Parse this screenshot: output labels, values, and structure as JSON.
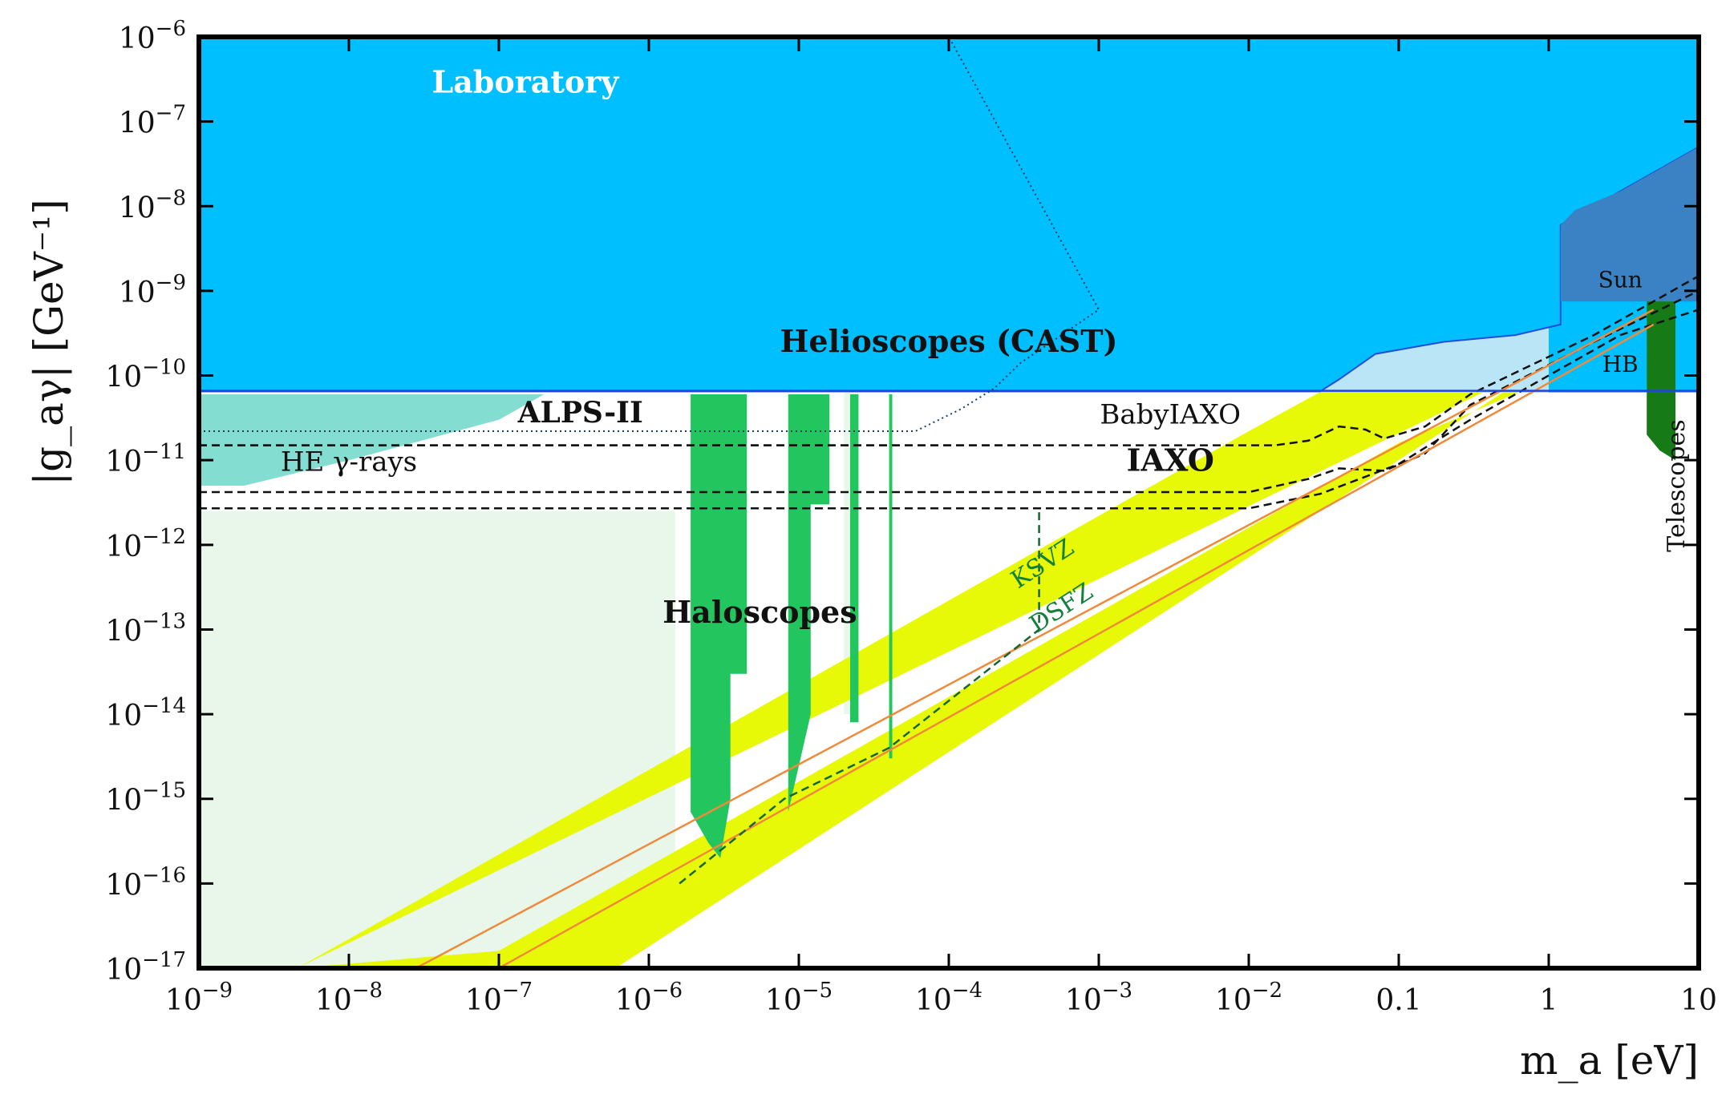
{
  "chart_data": {
    "type": "area",
    "title": "",
    "xlabel": "m_a [eV]",
    "ylabel": "|g_aγ| [GeV⁻¹]",
    "x_scale": "log",
    "y_scale": "log",
    "xlim": [
      1e-09,
      10
    ],
    "ylim": [
      1e-17,
      1e-06
    ],
    "grid": false,
    "x_ticks": [
      {
        "value": 1e-09,
        "base": "10",
        "exp": "−9"
      },
      {
        "value": 1e-08,
        "base": "10",
        "exp": "−8"
      },
      {
        "value": 1e-07,
        "base": "10",
        "exp": "−7"
      },
      {
        "value": 1e-06,
        "base": "10",
        "exp": "−6"
      },
      {
        "value": 1e-05,
        "base": "10",
        "exp": "−5"
      },
      {
        "value": 0.0001,
        "base": "10",
        "exp": "−4"
      },
      {
        "value": 0.001,
        "base": "10",
        "exp": "−3"
      },
      {
        "value": 0.01,
        "base": "10",
        "exp": "−2"
      },
      {
        "value": 0.1,
        "base": "0.1",
        "exp": ""
      },
      {
        "value": 1,
        "base": "1",
        "exp": ""
      },
      {
        "value": 10,
        "base": "10",
        "exp": ""
      }
    ],
    "y_ticks": [
      {
        "value": 1e-17,
        "base": "10",
        "exp": "−17"
      },
      {
        "value": 1e-16,
        "base": "10",
        "exp": "−16"
      },
      {
        "value": 1e-15,
        "base": "10",
        "exp": "−15"
      },
      {
        "value": 1e-14,
        "base": "10",
        "exp": "−14"
      },
      {
        "value": 1e-13,
        "base": "10",
        "exp": "−13"
      },
      {
        "value": 1e-12,
        "base": "10",
        "exp": "−12"
      },
      {
        "value": 1e-11,
        "base": "10",
        "exp": "−11"
      },
      {
        "value": 1e-10,
        "base": "10",
        "exp": "−10"
      },
      {
        "value": 1e-09,
        "base": "10",
        "exp": "−9"
      },
      {
        "value": 1e-08,
        "base": "10",
        "exp": "−8"
      },
      {
        "value": 1e-07,
        "base": "10",
        "exp": "−7"
      },
      {
        "value": 1e-06,
        "base": "10",
        "exp": "−6"
      }
    ],
    "regions": [
      {
        "name": "HE-gamma-band",
        "color": "#e8f7ea",
        "points": [
          [
            1e-09,
            2.5e-12
          ],
          [
            6e-07,
            2.5e-12
          ],
          [
            6e-07,
            1e-17
          ],
          [
            1e-09,
            1e-17
          ]
        ]
      },
      {
        "name": "pale-column-1",
        "color": "#e8f7ea",
        "points": [
          [
            6e-07,
            2.5e-12
          ],
          [
            1.5e-06,
            2.5e-12
          ],
          [
            1.5e-06,
            6e-17
          ],
          [
            6e-07,
            6e-17
          ]
        ]
      },
      {
        "name": "pale-column-2",
        "color": "#e8f7ea",
        "points": [
          [
            2e-05,
            6.5e-11
          ],
          [
            2.5e-05,
            6.5e-11
          ],
          [
            2.5e-05,
            1e-14
          ],
          [
            2e-05,
            1e-14
          ]
        ]
      },
      {
        "name": "QCD-band",
        "color": "#e8f908",
        "points": [
          [
            4.5e-09,
            1e-17
          ],
          [
            6e-07,
            1e-17
          ],
          [
            5,
            9e-10
          ],
          [
            7,
            9e-10
          ],
          [
            7,
            3.8e-10
          ],
          [
            0.1,
            1.6e-11
          ],
          [
            0.001,
            1.6e-13
          ],
          [
            1e-05,
            1.6e-15
          ],
          [
            1e-07,
            1.6e-17
          ],
          [
            4.5e-09,
            1e-17
          ]
        ]
      },
      {
        "name": "QCD-band-upper",
        "color": "#e8f908",
        "points": [
          [
            4.5e-09,
            1e-17
          ],
          [
            1e-08,
            2.2e-17
          ],
          [
            1e-06,
            2.2e-15
          ],
          [
            0.0001,
            2.2e-13
          ],
          [
            0.01,
            2.2e-11
          ],
          [
            0.4,
            8e-10
          ],
          [
            7,
            8e-10
          ]
        ]
      },
      {
        "name": "Haloscopes",
        "color": "#22c55e",
        "points": [
          [
            1.9e-06,
            6e-11
          ],
          [
            4.5e-06,
            6e-11
          ],
          [
            4.5e-06,
            3e-14
          ],
          [
            3.5e-06,
            3e-14
          ],
          [
            3.5e-06,
            1e-15
          ],
          [
            3e-06,
            2e-16
          ],
          [
            2.5e-06,
            3e-16
          ],
          [
            1.9e-06,
            7e-16
          ]
        ]
      },
      {
        "name": "Haloscopes-2",
        "color": "#22c55e",
        "points": [
          [
            8.5e-06,
            6e-11
          ],
          [
            1.6e-05,
            6e-11
          ],
          [
            1.6e-05,
            3e-12
          ],
          [
            1.2e-05,
            3e-12
          ],
          [
            1.2e-05,
            1e-14
          ],
          [
            8.5e-06,
            7e-16
          ]
        ]
      },
      {
        "name": "Haloscopes-3",
        "color": "#22c55e",
        "points": [
          [
            2.2e-05,
            6e-11
          ],
          [
            2.5e-05,
            6e-11
          ],
          [
            2.5e-05,
            8e-15
          ],
          [
            2.2e-05,
            8e-15
          ]
        ]
      },
      {
        "name": "Haloscopes-4",
        "color": "#22c55e",
        "points": [
          [
            4e-05,
            6e-11
          ],
          [
            4.2e-05,
            6e-11
          ],
          [
            4.2e-05,
            3e-15
          ],
          [
            4e-05,
            3e-15
          ]
        ]
      },
      {
        "name": "Laboratory",
        "color": "#00bfff",
        "points": [
          [
            1e-09,
            1e-06
          ],
          [
            10,
            1e-06
          ],
          [
            10,
            6.3e-11
          ],
          [
            1e-09,
            6.3e-11
          ]
        ]
      },
      {
        "name": "Helioscopes",
        "color": "#b9e5f7",
        "points": [
          [
            1e-09,
            6.3e-11
          ],
          [
            1,
            6.3e-11
          ],
          [
            1,
            7e-10
          ],
          [
            1e-09,
            7e-10
          ]
        ]
      },
      {
        "name": "CAST",
        "color": "#00bfff",
        "points": [
          [
            1e-09,
            6.5e-11
          ],
          [
            0.03,
            6.5e-11
          ],
          [
            0.04,
            9e-11
          ],
          [
            0.07,
            1.8e-10
          ],
          [
            0.2,
            2.5e-10
          ],
          [
            0.6,
            3e-10
          ],
          [
            1.2,
            4e-10
          ],
          [
            1.2,
            6e-09
          ],
          [
            10,
            5e-08
          ],
          [
            10,
            1e-06
          ],
          [
            1e-09,
            1e-06
          ]
        ]
      },
      {
        "name": "Sun",
        "color": "#3b82c4",
        "points": [
          [
            1.2,
            6e-09
          ],
          [
            1.5,
            9e-09
          ],
          [
            3,
            1.5e-08
          ],
          [
            10,
            5e-08
          ],
          [
            10,
            7.5e-10
          ],
          [
            1.2,
            7.5e-10
          ]
        ]
      },
      {
        "name": "Telescopes",
        "color": "#167a16",
        "points": [
          [
            4.5,
            7.5e-10
          ],
          [
            7,
            7.5e-10
          ],
          [
            7,
            1e-11
          ],
          [
            5.5,
            1.3e-11
          ],
          [
            4.5,
            2e-11
          ]
        ]
      },
      {
        "name": "HE-gamma-blobs",
        "color": "#5ad1c0",
        "points": [
          [
            1e-09,
            6e-11
          ],
          [
            2e-07,
            6e-11
          ],
          [
            1e-07,
            3e-11
          ],
          [
            1e-08,
            1e-11
          ],
          [
            2e-09,
            5e-12
          ],
          [
            1e-09,
            5e-12
          ]
        ]
      }
    ],
    "lines": [
      {
        "name": "ALPS-II",
        "color": "#111111",
        "style": "dashed",
        "points": [
          [
            1e-09,
            1.5e-11
          ],
          [
            0.0003,
            1.5e-11
          ]
        ]
      },
      {
        "name": "BabyIAXO",
        "color": "#111111",
        "style": "dashed",
        "points": [
          [
            1e-09,
            1.5e-11
          ],
          [
            0.015,
            1.5e-11
          ],
          [
            0.025,
            1.7e-11
          ],
          [
            0.04,
            2.5e-11
          ],
          [
            0.06,
            2.3e-11
          ],
          [
            0.08,
            1.8e-11
          ],
          [
            0.15,
            2.5e-11
          ],
          [
            0.3,
            6e-11
          ],
          [
            2,
            3e-10
          ],
          [
            10,
            1.5e-09
          ]
        ]
      },
      {
        "name": "IAXO",
        "color": "#111111",
        "style": "dashed",
        "points": [
          [
            1e-09,
            4.2e-12
          ],
          [
            0.01,
            4.2e-12
          ],
          [
            0.025,
            6e-12
          ],
          [
            0.04,
            8e-12
          ],
          [
            0.08,
            7.5e-12
          ],
          [
            0.15,
            1.2e-11
          ],
          [
            0.3,
            4.5e-11
          ],
          [
            2,
            2.5e-10
          ],
          [
            10,
            1e-09
          ]
        ]
      },
      {
        "name": "IAXO-low",
        "color": "#111111",
        "style": "dashed",
        "points": [
          [
            1e-09,
            2.7e-12
          ],
          [
            0.01,
            2.7e-12
          ],
          [
            0.03,
            4e-12
          ],
          [
            0.1,
            9e-12
          ],
          [
            0.3,
            3e-11
          ],
          [
            3,
            3e-10
          ],
          [
            10,
            6e-10
          ]
        ]
      },
      {
        "name": "KSVZ",
        "color": "#f08a3a",
        "style": "solid",
        "points": [
          [
            2.8e-08,
            1e-17
          ],
          [
            5,
            6e-10
          ]
        ]
      },
      {
        "name": "DSFZ",
        "color": "#f08a3a",
        "style": "solid",
        "points": [
          [
            1e-07,
            1e-17
          ],
          [
            5,
            4e-10
          ]
        ]
      },
      {
        "name": "HB",
        "color": "#2244dd",
        "style": "solid",
        "points": [
          [
            1e-09,
            6.6e-11
          ],
          [
            10,
            6.6e-11
          ]
        ]
      },
      {
        "name": "projection-dotted",
        "color": "#1e3a5f",
        "style": "dotted",
        "points": [
          [
            1e-09,
            2.2e-11
          ],
          [
            6e-05,
            2.2e-11
          ],
          [
            0.00012,
            4e-11
          ],
          [
            0.0002,
            7e-11
          ],
          [
            0.0003,
            1.4e-10
          ],
          [
            0.001,
            6e-10
          ],
          [
            0.0001,
            1e-06
          ]
        ]
      },
      {
        "name": "future-haloscope",
        "color": "#166534",
        "style": "dashed",
        "points": [
          [
            1.6e-06,
            1e-16
          ],
          [
            8e-06,
            1e-15
          ],
          [
            4e-05,
            4e-15
          ],
          [
            0.0004,
            1e-13
          ],
          [
            0.0004,
            2.5e-12
          ]
        ]
      }
    ],
    "annotations": [
      {
        "text": "Laboratory",
        "x": 1.5e-07,
        "y": 2.2e-07,
        "color": "#ffffff",
        "size": 38,
        "bold": true,
        "rotate": 0
      },
      {
        "text": "Helioscopes (CAST)",
        "x": 0.0001,
        "y": 1.9e-10,
        "color": "#111111",
        "size": 38,
        "bold": true,
        "rotate": 0
      },
      {
        "text": "ALPS-II",
        "x": 3.5e-07,
        "y": 2.8e-11,
        "color": "#111111",
        "size": 36,
        "bold": true,
        "rotate": 0
      },
      {
        "text": "BabyIAXO",
        "x": 0.003,
        "y": 2.7e-11,
        "color": "#111111",
        "size": 34,
        "bold": false,
        "rotate": 0
      },
      {
        "text": "IAXO",
        "x": 0.003,
        "y": 7.5e-12,
        "color": "#111111",
        "size": 38,
        "bold": true,
        "rotate": 0
      },
      {
        "text": "HE γ-rays",
        "x": 1e-08,
        "y": 7.5e-12,
        "color": "#111111",
        "size": 34,
        "bold": false,
        "rotate": 0
      },
      {
        "text": "Haloscopes",
        "x": 5.5e-06,
        "y": 1.2e-13,
        "color": "#111111",
        "size": 38,
        "bold": true,
        "rotate": 0
      },
      {
        "text": "KSVZ",
        "x": 0.00045,
        "y": 5e-13,
        "color": "#15803d",
        "size": 30,
        "bold": false,
        "rotate": -33
      },
      {
        "text": "DSFZ",
        "x": 0.0006,
        "y": 1.5e-13,
        "color": "#15803d",
        "size": 30,
        "bold": false,
        "rotate": -33
      },
      {
        "text": "Sun",
        "x": 3,
        "y": 1.1e-09,
        "color": "#111111",
        "size": 28,
        "bold": false,
        "rotate": 0
      },
      {
        "text": "HB",
        "x": 3,
        "y": 1.1e-10,
        "color": "#111111",
        "size": 28,
        "bold": false,
        "rotate": 0
      },
      {
        "text": "Telescopes",
        "x": 8,
        "y": 5e-12,
        "color": "#111111",
        "size": 30,
        "bold": false,
        "rotate": -90
      }
    ]
  }
}
